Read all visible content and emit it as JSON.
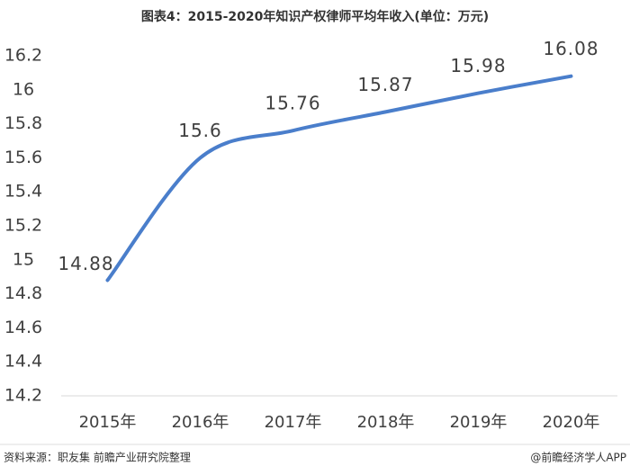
{
  "title": "图表4：2015-2020年知识产权律师平均年收入(单位：万元)",
  "chart_data": {
    "type": "line",
    "categories": [
      "2015年",
      "2016年",
      "2017年",
      "2018年",
      "2019年",
      "2020年"
    ],
    "values": [
      14.88,
      15.6,
      15.76,
      15.87,
      15.98,
      16.08
    ],
    "color": "#4a7ecb",
    "smooth": true,
    "ylim": [
      14.2,
      16.2
    ],
    "yticks": [
      14.2,
      14.4,
      14.6,
      14.8,
      15,
      15.2,
      15.4,
      15.6,
      15.8,
      16,
      16.2
    ],
    "grid": false
  },
  "footer": {
    "source": "资料来源：职友集 前瞻产业研究院整理",
    "brand": "@前瞻经济学人APP"
  }
}
